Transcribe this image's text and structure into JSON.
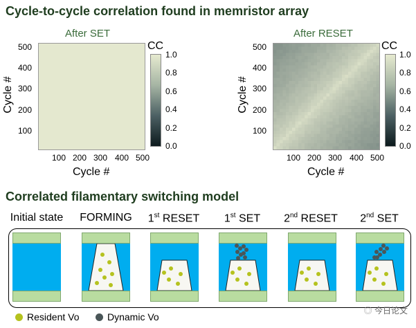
{
  "top_title": "Cycle-to-cycle correlation found in memristor array",
  "bottom_title": "Correlated filamentary switching model",
  "heatmaps": [
    {
      "title": "After SET",
      "colorbar_label": "CC",
      "colorbar_ticks": [
        "1.0",
        "0.8",
        "0.6",
        "0.4",
        "0.2",
        "0.0"
      ],
      "x_ticks": [
        "100",
        "200",
        "300",
        "400",
        "500"
      ],
      "y_ticks": [
        "500",
        "400",
        "300",
        "200",
        "100"
      ],
      "x_label": "Cycle #",
      "y_label": "Cycle #"
    },
    {
      "title": "After RESET",
      "colorbar_label": "CC",
      "colorbar_ticks": [
        "1.0",
        "0.8",
        "0.6",
        "0.4",
        "0.2",
        "0.0"
      ],
      "x_ticks": [
        "100",
        "200",
        "300",
        "400",
        "500"
      ],
      "y_ticks": [
        "500",
        "400",
        "300",
        "200",
        "100"
      ],
      "x_label": "Cycle #",
      "y_label": "Cycle #"
    }
  ],
  "stages": {
    "initial": "Initial state",
    "forming": "FORMING",
    "reset1_num": "1",
    "reset1_sup": "st",
    "reset1_rest": " RESET",
    "set1_num": "1",
    "set1_sup": "st",
    "set1_rest": " SET",
    "reset2_num": "2",
    "reset2_sup": "nd",
    "reset2_rest": " RESET",
    "set2_num": "2",
    "set2_sup": "nd",
    "set2_rest": " SET"
  },
  "legend": {
    "resident": "Resident Vo",
    "dynamic": "Dynamic Vo"
  },
  "watermark": "今日论文",
  "colors": {
    "electrode": "#b9dca0",
    "oxide": "#00adef",
    "filament": "#f7f7f2",
    "resident_vo": "#b5c21e",
    "dynamic_vo": "#4a5658",
    "heat_high": "#e6ead0",
    "heat_low": "#0c1a1d"
  }
}
